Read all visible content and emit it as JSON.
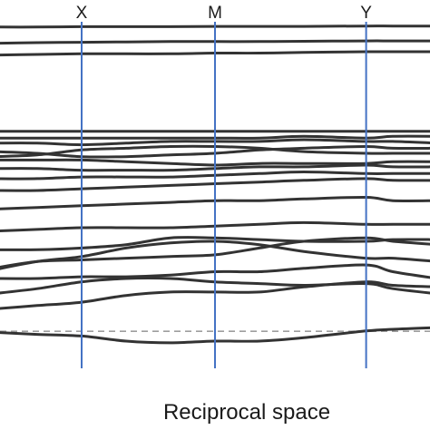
{
  "chart_data": {
    "type": "line",
    "title": "",
    "xlabel": "Reciprocal space",
    "ylabel": "",
    "k_points": [
      "X",
      "M",
      "Y"
    ],
    "k_point_x": [
      0.2,
      0.5,
      0.84
    ],
    "xlim": [
      0,
      1
    ],
    "ylim": [
      -0.02,
      1.02
    ],
    "reference_level": 0.084,
    "reference_style": "dashed",
    "grid": false,
    "legend": "none",
    "colors": {
      "bands": "#333333",
      "k_lines": "#4472c4",
      "reference": "#9e9e9e"
    },
    "x": [
      0.0,
      0.1,
      0.2,
      0.3,
      0.4,
      0.5,
      0.6,
      0.7,
      0.84,
      0.9,
      1.0
    ],
    "series": [
      {
        "values": [
          0.081,
          0.075,
          0.07,
          0.055,
          0.05,
          0.055,
          0.055,
          0.065,
          0.085,
          0.09,
          0.095
        ]
      },
      {
        "values": [
          0.15,
          0.16,
          0.17,
          0.19,
          0.2,
          0.2,
          0.2,
          0.215,
          0.23,
          0.22,
          0.215
        ]
      },
      {
        "values": [
          0.195,
          0.21,
          0.23,
          0.24,
          0.24,
          0.23,
          0.225,
          0.22,
          0.225,
          0.21,
          0.195
        ]
      },
      {
        "values": [
          0.24,
          0.24,
          0.245,
          0.245,
          0.25,
          0.26,
          0.26,
          0.27,
          0.28,
          0.26,
          0.24
        ]
      },
      {
        "values": [
          0.265,
          0.29,
          0.305,
          0.33,
          0.345,
          0.35,
          0.34,
          0.32,
          0.3,
          0.3,
          0.29
        ]
      },
      {
        "values": [
          0.27,
          0.29,
          0.295,
          0.3,
          0.305,
          0.31,
          0.33,
          0.35,
          0.36,
          0.35,
          0.34
        ]
      },
      {
        "values": [
          0.325,
          0.325,
          0.33,
          0.34,
          0.36,
          0.36,
          0.355,
          0.35,
          0.35,
          0.355,
          0.355
        ]
      },
      {
        "values": [
          0.38,
          0.385,
          0.39,
          0.39,
          0.39,
          0.395,
          0.4,
          0.405,
          0.4,
          0.4,
          0.4
        ]
      },
      {
        "values": [
          0.445,
          0.45,
          0.455,
          0.46,
          0.465,
          0.47,
          0.47,
          0.475,
          0.48,
          0.47,
          0.47
        ]
      },
      {
        "values": [
          0.5,
          0.5,
          0.505,
          0.51,
          0.515,
          0.52,
          0.525,
          0.53,
          0.535,
          0.53,
          0.53
        ]
      },
      {
        "values": [
          0.535,
          0.535,
          0.54,
          0.54,
          0.54,
          0.545,
          0.55,
          0.555,
          0.55,
          0.55,
          0.55
        ]
      },
      {
        "values": [
          0.565,
          0.565,
          0.56,
          0.56,
          0.56,
          0.565,
          0.57,
          0.57,
          0.575,
          0.57,
          0.57
        ]
      },
      {
        "values": [
          0.59,
          0.59,
          0.59,
          0.585,
          0.58,
          0.575,
          0.58,
          0.58,
          0.58,
          0.585,
          0.585
        ]
      },
      {
        "values": [
          0.615,
          0.61,
          0.6,
          0.6,
          0.605,
          0.61,
          0.62,
          0.625,
          0.63,
          0.625,
          0.625
        ]
      },
      {
        "values": [
          0.6,
          0.605,
          0.62,
          0.625,
          0.63,
          0.63,
          0.625,
          0.615,
          0.61,
          0.61,
          0.61
        ]
      },
      {
        "values": [
          0.64,
          0.64,
          0.635,
          0.64,
          0.645,
          0.645,
          0.645,
          0.65,
          0.645,
          0.645,
          0.64
        ]
      },
      {
        "values": [
          0.655,
          0.655,
          0.655,
          0.655,
          0.655,
          0.655,
          0.655,
          0.66,
          0.655,
          0.66,
          0.66
        ]
      },
      {
        "values": [
          0.675,
          0.675,
          0.675,
          0.675,
          0.675,
          0.675,
          0.675,
          0.675,
          0.675,
          0.675,
          0.675
        ]
      },
      {
        "values": [
          0.9,
          0.902,
          0.904,
          0.904,
          0.904,
          0.906,
          0.906,
          0.908,
          0.91,
          0.91,
          0.91
        ]
      },
      {
        "values": [
          0.935,
          0.937,
          0.938,
          0.939,
          0.94,
          0.94,
          0.94,
          0.941,
          0.942,
          0.942,
          0.942
        ]
      },
      {
        "values": [
          0.983,
          0.983,
          0.984,
          0.984,
          0.984,
          0.985,
          0.985,
          0.985,
          0.986,
          0.986,
          0.986
        ]
      }
    ]
  }
}
